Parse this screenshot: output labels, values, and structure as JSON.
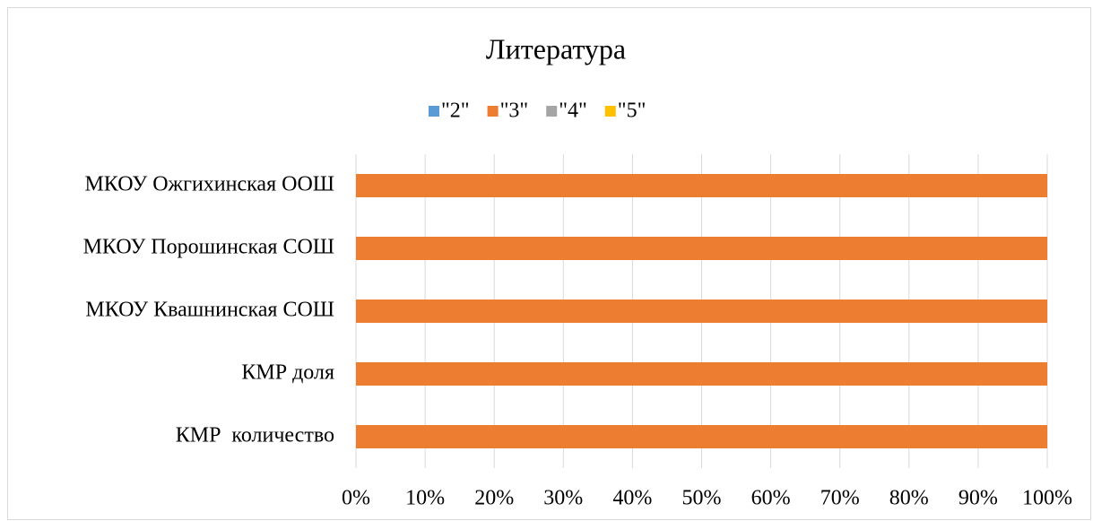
{
  "chart_data": {
    "type": "stacked-bar-horizontal",
    "title": "Литература",
    "categories": [
      "МКОУ Ожгихинская ООШ",
      "МКОУ Порошинская СОШ",
      "МКОУ Квашнинская СОШ",
      "КМР доля",
      "КМР  количество"
    ],
    "series": [
      {
        "name": "\"2\"",
        "color": "#5b9bd5",
        "values": [
          0,
          0,
          0,
          0,
          0
        ]
      },
      {
        "name": "\"3\"",
        "color": "#ed7d31",
        "values": [
          100,
          100,
          100,
          100,
          100
        ]
      },
      {
        "name": "\"4\"",
        "color": "#a5a5a5",
        "values": [
          0,
          0,
          0,
          0,
          0
        ]
      },
      {
        "name": "\"5\"",
        "color": "#ffc000",
        "values": [
          0,
          0,
          0,
          0,
          0
        ]
      }
    ],
    "xlim": [
      0,
      100
    ],
    "xticks": [
      {
        "value": 0,
        "label": "0%"
      },
      {
        "value": 10,
        "label": "10%"
      },
      {
        "value": 20,
        "label": "20%"
      },
      {
        "value": 30,
        "label": "30%"
      },
      {
        "value": 40,
        "label": "40%"
      },
      {
        "value": 50,
        "label": "50%"
      },
      {
        "value": 60,
        "label": "60%"
      },
      {
        "value": 70,
        "label": "70%"
      },
      {
        "value": 80,
        "label": "80%"
      },
      {
        "value": 90,
        "label": "90%"
      },
      {
        "value": 100,
        "label": "100%"
      }
    ],
    "grid": true,
    "legend": "top"
  }
}
